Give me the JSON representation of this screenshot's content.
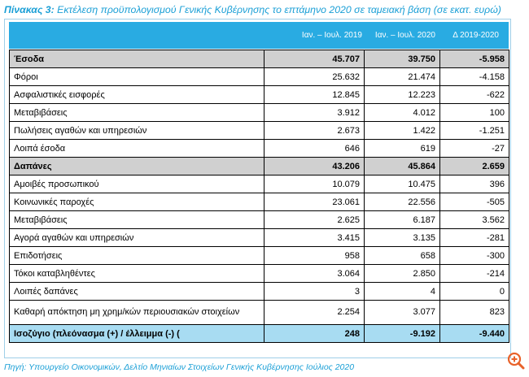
{
  "title": {
    "label": "Πίνακας 3:",
    "text": "Εκτέλεση προϋπολογισμού Γενικής Κυβέρνησης το επτάμηνο 2020 σε ταμειακή βάση (σε εκατ. ευρώ)"
  },
  "columns": [
    "Ιαν. – Ιουλ. 2019",
    "Ιαν. – Ιουλ. 2020",
    "Δ 2019-2020"
  ],
  "rows": [
    {
      "label": "Έσοδα",
      "v2019": "45.707",
      "v2020": "39.750",
      "delta": "-5.958",
      "type": "section"
    },
    {
      "label": "Φόροι",
      "v2019": "25.632",
      "v2020": "21.474",
      "delta": "-4.158",
      "type": "normal"
    },
    {
      "label": "Ασφαλιστικές εισφορές",
      "v2019": "12.845",
      "v2020": "12.223",
      "delta": "-622",
      "type": "normal"
    },
    {
      "label": "Μεταβιβάσεις",
      "v2019": "3.912",
      "v2020": "4.012",
      "delta": "100",
      "type": "normal"
    },
    {
      "label": "Πωλήσεις αγαθών και υπηρεσιών",
      "v2019": "2.673",
      "v2020": "1.422",
      "delta": "-1.251",
      "type": "normal"
    },
    {
      "label": "Λοιπά έσοδα",
      "v2019": "646",
      "v2020": "619",
      "delta": "-27",
      "type": "normal"
    },
    {
      "label": "Δαπάνες",
      "v2019": "43.206",
      "v2020": "45.864",
      "delta": "2.659",
      "type": "section"
    },
    {
      "label": "Αμοιβές προσωπικού",
      "v2019": "10.079",
      "v2020": "10.475",
      "delta": "396",
      "type": "normal"
    },
    {
      "label": "Κοινωνικές παροχές",
      "v2019": "23.061",
      "v2020": "22.556",
      "delta": "-505",
      "type": "normal"
    },
    {
      "label": "Μεταβιβάσεις",
      "v2019": "2.625",
      "v2020": "6.187",
      "delta": "3.562",
      "type": "normal"
    },
    {
      "label": "Αγορά αγαθών και υπηρεσιών",
      "v2019": "3.415",
      "v2020": "3.135",
      "delta": "-281",
      "type": "normal"
    },
    {
      "label": "Επιδοτήσεις",
      "v2019": "958",
      "v2020": "658",
      "delta": "-300",
      "type": "normal"
    },
    {
      "label": "Τόκοι καταβληθέντες",
      "v2019": "3.064",
      "v2020": "2.850",
      "delta": "-214",
      "type": "normal"
    },
    {
      "label": "Λοιπές δαπάνες",
      "v2019": "3",
      "v2020": "4",
      "delta": "0",
      "type": "normal"
    },
    {
      "label": "Καθαρή απόκτηση μη χρημ/κών περιουσιακών στοιχείων",
      "v2019": "2.254",
      "v2020": "3.077",
      "delta": "823",
      "type": "tall"
    },
    {
      "label": "Ισοζύγιο (πλεόνασμα (+) / έλλειμμα (-) (",
      "v2019": "248",
      "v2020": "-9.192",
      "delta": "-9.440",
      "type": "balance"
    }
  ],
  "source": "Πηγή: Υπουργείο Οικονομικών, Δελτίο Μηνιαίων Στοιχείων Γενικής Κυβέρνησης Ιούλιος 2020",
  "colors": {
    "accent": "#29abe2",
    "title_text": "#1a9fd6",
    "section_row": "#d0d0d0",
    "balance_row": "#a8dcf2",
    "zoom_icon": "#e8622a"
  },
  "icons": {
    "zoom": "zoom-in-icon"
  }
}
